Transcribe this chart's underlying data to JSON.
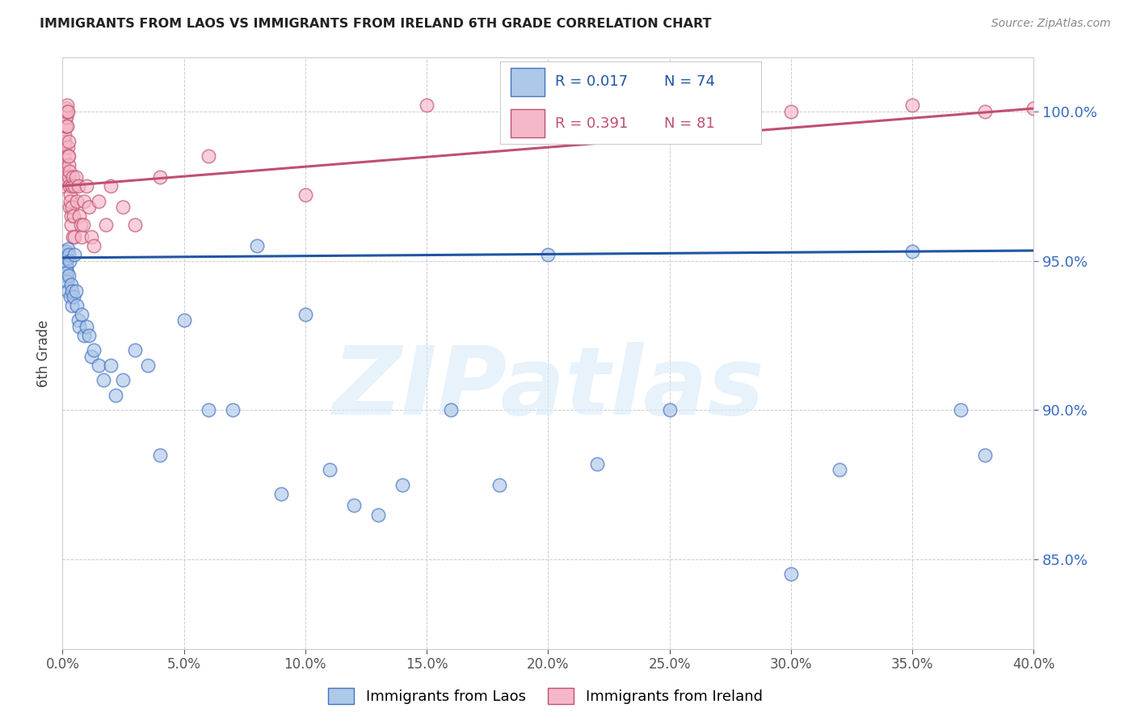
{
  "title": "IMMIGRANTS FROM LAOS VS IMMIGRANTS FROM IRELAND 6TH GRADE CORRELATION CHART",
  "source": "Source: ZipAtlas.com",
  "ylabel": "6th Grade",
  "x_min": 0.0,
  "x_max": 40.0,
  "y_min": 82.0,
  "y_max": 101.8,
  "yticks": [
    85.0,
    90.0,
    95.0,
    100.0
  ],
  "xticks": [
    0.0,
    5.0,
    10.0,
    15.0,
    20.0,
    25.0,
    30.0,
    35.0,
    40.0
  ],
  "blue_color": "#aec8e8",
  "blue_edge_color": "#4472c4",
  "pink_color": "#f5b8c8",
  "pink_edge_color": "#c05070",
  "blue_line_color": "#2155a3",
  "pink_line_color": "#c05070",
  "watermark_text": "ZIPatlas",
  "blue_x": [
    0.05,
    0.07,
    0.08,
    0.09,
    0.1,
    0.11,
    0.12,
    0.13,
    0.14,
    0.15,
    0.16,
    0.17,
    0.18,
    0.19,
    0.2,
    0.22,
    0.23,
    0.25,
    0.27,
    0.3,
    0.32,
    0.35,
    0.38,
    0.4,
    0.45,
    0.5,
    0.55,
    0.6,
    0.65,
    0.7,
    0.8,
    0.9,
    1.0,
    1.1,
    1.2,
    1.3,
    1.5,
    1.7,
    2.0,
    2.2,
    2.5,
    3.0,
    3.5,
    4.0,
    5.0,
    6.0,
    7.0,
    8.0,
    9.0,
    10.0,
    11.0,
    12.0,
    13.0,
    14.0,
    16.0,
    18.0,
    20.0,
    22.0,
    25.0,
    30.0,
    32.0,
    35.0,
    37.0,
    38.0
  ],
  "blue_y": [
    95.2,
    95.3,
    95.1,
    94.8,
    95.0,
    94.9,
    95.2,
    94.7,
    95.3,
    95.0,
    94.5,
    94.8,
    95.1,
    94.6,
    94.3,
    95.4,
    94.0,
    95.2,
    94.5,
    95.0,
    93.8,
    94.2,
    93.5,
    94.0,
    93.8,
    95.2,
    94.0,
    93.5,
    93.0,
    92.8,
    93.2,
    92.5,
    92.8,
    92.5,
    91.8,
    92.0,
    91.5,
    91.0,
    91.5,
    90.5,
    91.0,
    92.0,
    91.5,
    88.5,
    93.0,
    90.0,
    90.0,
    95.5,
    87.2,
    93.2,
    88.0,
    86.8,
    86.5,
    87.5,
    90.0,
    87.5,
    95.2,
    88.2,
    90.0,
    84.5,
    88.0,
    95.3,
    90.0,
    88.5
  ],
  "pink_x": [
    0.03,
    0.04,
    0.05,
    0.06,
    0.07,
    0.08,
    0.09,
    0.1,
    0.11,
    0.12,
    0.13,
    0.14,
    0.15,
    0.16,
    0.17,
    0.18,
    0.19,
    0.2,
    0.21,
    0.22,
    0.23,
    0.24,
    0.25,
    0.26,
    0.27,
    0.28,
    0.29,
    0.3,
    0.32,
    0.33,
    0.35,
    0.37,
    0.38,
    0.4,
    0.42,
    0.43,
    0.45,
    0.48,
    0.5,
    0.55,
    0.6,
    0.65,
    0.7,
    0.75,
    0.8,
    0.85,
    0.9,
    1.0,
    1.1,
    1.2,
    1.3,
    1.5,
    1.8,
    2.0,
    2.5,
    3.0,
    4.0,
    6.0,
    10.0,
    15.0,
    20.0,
    30.0,
    35.0,
    38.0,
    40.0
  ],
  "pink_y": [
    97.5,
    97.8,
    98.0,
    98.2,
    98.5,
    98.8,
    99.0,
    99.2,
    99.5,
    99.8,
    100.0,
    99.5,
    100.0,
    100.1,
    99.8,
    100.0,
    99.5,
    100.2,
    98.8,
    98.5,
    100.0,
    98.2,
    99.0,
    97.8,
    98.5,
    97.5,
    98.0,
    96.8,
    97.2,
    97.0,
    96.5,
    96.2,
    97.5,
    96.8,
    97.8,
    95.8,
    96.5,
    95.8,
    97.5,
    97.8,
    97.0,
    97.5,
    96.5,
    96.2,
    95.8,
    96.2,
    97.0,
    97.5,
    96.8,
    95.8,
    95.5,
    97.0,
    96.2,
    97.5,
    96.8,
    96.2,
    97.8,
    98.5,
    97.2,
    100.2,
    99.5,
    100.0,
    100.2,
    100.0,
    100.1
  ]
}
